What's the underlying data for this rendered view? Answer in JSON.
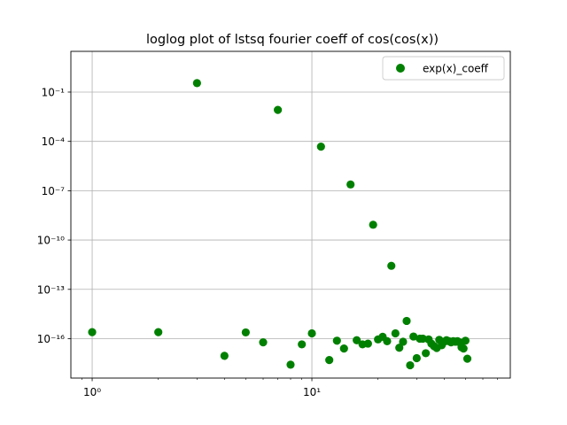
{
  "chart_data": {
    "type": "scatter",
    "title": "loglog plot of lstsq fourier coeff of cos(cos(x))",
    "xlabel": "",
    "ylabel": "",
    "xscale": "log",
    "yscale": "log",
    "xlim": [
      0.8,
      80
    ],
    "ylim": [
      4e-19,
      30
    ],
    "grid": true,
    "legend_position": "top-right",
    "x_ticks": [
      {
        "value": 1,
        "label": "10⁰"
      },
      {
        "value": 10,
        "label": "10¹"
      }
    ],
    "y_ticks": [
      {
        "value": 0.1,
        "label": "10⁻¹"
      },
      {
        "value": 0.0001,
        "label": "10⁻⁴"
      },
      {
        "value": 1e-07,
        "label": "10⁻⁷"
      },
      {
        "value": 1e-10,
        "label": "10⁻¹⁰"
      },
      {
        "value": 1e-13,
        "label": "10⁻¹³"
      },
      {
        "value": 1e-16,
        "label": "10⁻¹⁶"
      }
    ],
    "series": [
      {
        "name": "exp(x)_coeff",
        "color": "#008000",
        "marker": "circle",
        "points": [
          [
            1,
            2.5e-16
          ],
          [
            2,
            2.5e-16
          ],
          [
            3,
            0.35
          ],
          [
            4,
            9e-18
          ],
          [
            5,
            2.4e-16
          ],
          [
            6,
            6e-17
          ],
          [
            7,
            0.0082
          ],
          [
            8,
            2.6e-18
          ],
          [
            9,
            4.5e-17
          ],
          [
            10,
            2.1e-16
          ],
          [
            11,
            4.8e-05
          ],
          [
            12,
            5e-18
          ],
          [
            13,
            7.5e-17
          ],
          [
            14,
            2.5e-17
          ],
          [
            15,
            2.4e-07
          ],
          [
            16,
            8e-17
          ],
          [
            17,
            4.5e-17
          ],
          [
            18,
            5e-17
          ],
          [
            19,
            8.5e-10
          ],
          [
            20,
            9e-17
          ],
          [
            21,
            1.3e-16
          ],
          [
            22,
            7e-17
          ],
          [
            23,
            2.7e-12
          ],
          [
            24,
            2.1e-16
          ],
          [
            25,
            2.8e-17
          ],
          [
            26,
            6.5e-17
          ],
          [
            27,
            1.2e-15
          ],
          [
            28,
            2.4e-18
          ],
          [
            29,
            1.35e-16
          ],
          [
            30,
            6.5e-18
          ],
          [
            31,
            1e-16
          ],
          [
            32,
            1e-16
          ],
          [
            33,
            1.3e-17
          ],
          [
            34,
            9e-17
          ],
          [
            35,
            5e-17
          ],
          [
            36,
            3.5e-17
          ],
          [
            37,
            2.7e-17
          ],
          [
            38,
            8.5e-17
          ],
          [
            39,
            4e-17
          ],
          [
            40,
            6.5e-17
          ],
          [
            41,
            8e-17
          ],
          [
            42,
            7e-17
          ],
          [
            43,
            6e-17
          ],
          [
            44,
            7e-17
          ],
          [
            45,
            6.5e-17
          ],
          [
            46,
            7e-17
          ],
          [
            47,
            6e-17
          ],
          [
            48,
            3e-17
          ],
          [
            49,
            2.5e-17
          ],
          [
            50,
            7.5e-17
          ],
          [
            51,
            6e-18
          ]
        ]
      }
    ]
  }
}
